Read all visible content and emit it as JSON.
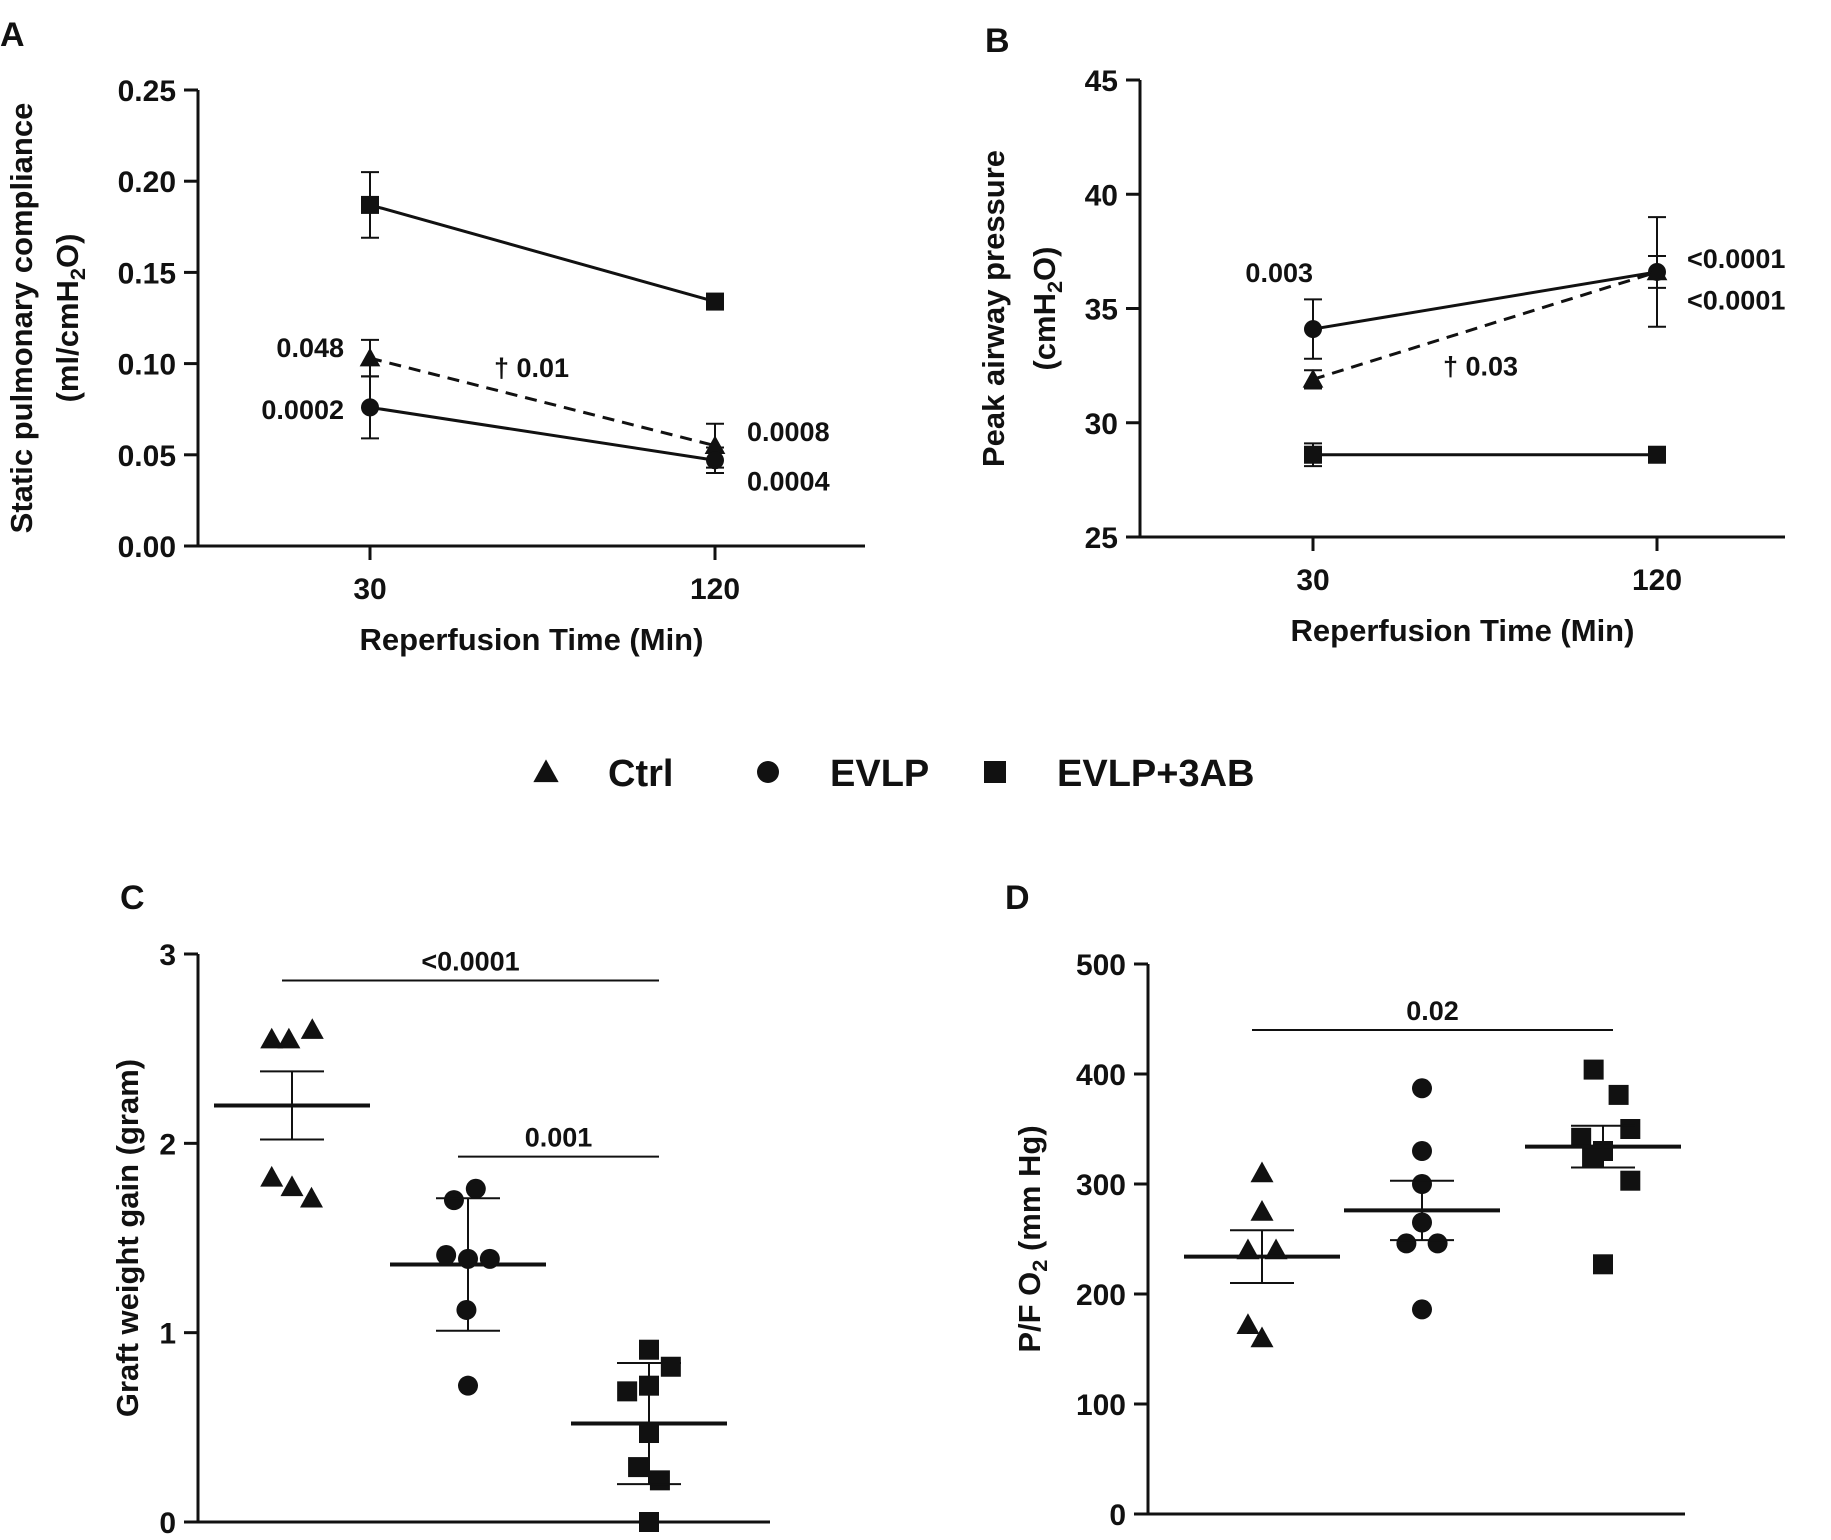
{
  "legend": [
    {
      "label": "Ctrl",
      "marker": "triangle"
    },
    {
      "label": "EVLP",
      "marker": "circle"
    },
    {
      "label": "EVLP+3AB",
      "marker": "square"
    }
  ],
  "chart_data": [
    {
      "panel": "A",
      "type": "line",
      "xlabel": "Reperfusion Time (Min)",
      "ylabel_main": "Static pulmonary compliance",
      "ylabel_unit": [
        "(ml/cmH",
        "2",
        "O)"
      ],
      "categories": [
        "30",
        "120"
      ],
      "ylim": [
        0,
        0.25
      ],
      "yticks": [
        "0.00",
        "0.05",
        "0.10",
        "0.15",
        "0.20",
        "0.25"
      ],
      "series": [
        {
          "name": "EVLP+3AB",
          "marker": "square",
          "dashed": false,
          "values": [
            0.187,
            0.134
          ],
          "sem": [
            0.018,
            0.002
          ]
        },
        {
          "name": "Ctrl",
          "marker": "triangle",
          "dashed": true,
          "values": [
            0.103,
            0.055
          ],
          "sem": [
            0.01,
            0.012
          ]
        },
        {
          "name": "EVLP",
          "marker": "circle",
          "dashed": false,
          "values": [
            0.076,
            0.047
          ],
          "sem": [
            0.017,
            0.007
          ]
        }
      ],
      "annotations": [
        {
          "text": "0.048",
          "x": "30",
          "y": 0.109,
          "anchor": "end",
          "dx": -26
        },
        {
          "text": "0.0002",
          "x": "30",
          "y": 0.075,
          "anchor": "end",
          "dx": -26
        },
        {
          "text": "† 0.01",
          "x": "30",
          "y": 0.098,
          "anchor": "start",
          "dx": 124
        },
        {
          "text": "0.0008",
          "x": "120",
          "y": 0.063,
          "anchor": "start",
          "dx": 32
        },
        {
          "text": "0.0004",
          "x": "120",
          "y": 0.036,
          "anchor": "start",
          "dx": 32
        }
      ]
    },
    {
      "panel": "B",
      "type": "line",
      "xlabel": "Reperfusion Time (Min)",
      "ylabel_main": "Peak airway pressure",
      "ylabel_unit": [
        "(cmH",
        "2",
        "O)"
      ],
      "categories": [
        "30",
        "120"
      ],
      "ylim": [
        25,
        45
      ],
      "yticks": [
        "25",
        "30",
        "35",
        "40",
        "45"
      ],
      "series": [
        {
          "name": "EVLP",
          "marker": "circle",
          "dashed": false,
          "values": [
            34.1,
            36.6
          ],
          "sem": [
            1.3,
            0.7
          ]
        },
        {
          "name": "Ctrl",
          "marker": "triangle",
          "dashed": true,
          "values": [
            31.9,
            36.6
          ],
          "sem": [
            0.4,
            2.4
          ]
        },
        {
          "name": "EVLP+3AB",
          "marker": "square",
          "dashed": false,
          "values": [
            28.6,
            28.6
          ],
          "sem": [
            0.5,
            0.1
          ]
        }
      ],
      "annotations": [
        {
          "text": "0.003",
          "x": "30",
          "y": 36.6,
          "anchor": "end",
          "dx": 0
        },
        {
          "text": "† 0.03",
          "x": "30",
          "y": 32.5,
          "anchor": "start",
          "dx": 130
        },
        {
          "text": "<0.0001",
          "x": "120",
          "y": 37.2,
          "anchor": "start",
          "dx": 30
        },
        {
          "text": "<0.0001",
          "x": "120",
          "y": 35.4,
          "anchor": "start",
          "dx": 30
        }
      ]
    },
    {
      "panel": "C",
      "type": "scatter",
      "ylabel": "Graft weight gain (gram)",
      "ylim": [
        0,
        3
      ],
      "yticks": [
        "0",
        "1",
        "2",
        "3"
      ],
      "groups": [
        {
          "name": "Ctrl",
          "marker": "triangle",
          "mean": 2.2,
          "err": [
            2.02,
            2.38
          ],
          "points": [
            [
              -0.26,
              2.55
            ],
            [
              -0.04,
              2.55
            ],
            [
              0.26,
              2.6
            ],
            [
              -0.26,
              1.82
            ],
            [
              0.0,
              1.77
            ],
            [
              0.25,
              1.71
            ]
          ]
        },
        {
          "name": "EVLP",
          "marker": "circle",
          "mean": 1.36,
          "err": [
            1.01,
            1.71
          ],
          "points": [
            [
              -0.18,
              1.7
            ],
            [
              0.1,
              1.76
            ],
            [
              -0.28,
              1.41
            ],
            [
              0.0,
              1.39
            ],
            [
              0.28,
              1.39
            ],
            [
              -0.02,
              1.12
            ],
            [
              0.0,
              0.72
            ]
          ]
        },
        {
          "name": "EVLP+3AB",
          "marker": "square",
          "mean": 0.52,
          "err": [
            0.2,
            0.84
          ],
          "points": [
            [
              0.0,
              0.91
            ],
            [
              0.28,
              0.82
            ],
            [
              -0.28,
              0.69
            ],
            [
              0.0,
              0.72
            ],
            [
              0.0,
              0.47
            ],
            [
              -0.14,
              0.29
            ],
            [
              0.14,
              0.22
            ],
            [
              0.0,
              0.0
            ]
          ]
        }
      ],
      "brackets": [
        {
          "text": "<0.0001",
          "from": 0,
          "to": 2,
          "y": 2.86
        },
        {
          "text": "0.001",
          "from": 1,
          "to": 2,
          "y": 1.93
        }
      ]
    },
    {
      "panel": "D",
      "type": "scatter",
      "ylabel_parts": [
        "P/F O",
        "2",
        " (mm Hg)"
      ],
      "ylim": [
        0,
        500
      ],
      "yticks": [
        "0",
        "100",
        "200",
        "300",
        "400",
        "500"
      ],
      "groups": [
        {
          "name": "Ctrl",
          "marker": "triangle",
          "mean": 234,
          "err": [
            210,
            258
          ],
          "points": [
            [
              0.0,
              310
            ],
            [
              0.0,
              275
            ],
            [
              -0.18,
              240
            ],
            [
              0.18,
              240
            ],
            [
              -0.18,
              172
            ],
            [
              0.0,
              160
            ]
          ]
        },
        {
          "name": "EVLP",
          "marker": "circle",
          "mean": 276,
          "err": [
            249,
            303
          ],
          "points": [
            [
              0.0,
              387
            ],
            [
              0.0,
              330
            ],
            [
              0.0,
              300
            ],
            [
              0.0,
              265
            ],
            [
              -0.2,
              246
            ],
            [
              0.2,
              246
            ],
            [
              0.0,
              186
            ]
          ]
        },
        {
          "name": "EVLP+3AB",
          "marker": "square",
          "mean": 334,
          "err": [
            315,
            353
          ],
          "points": [
            [
              -0.12,
              404
            ],
            [
              0.2,
              381
            ],
            [
              -0.28,
              342
            ],
            [
              0.35,
              350
            ],
            [
              0.0,
              330
            ],
            [
              -0.14,
              325
            ],
            [
              0.35,
              303
            ],
            [
              0.0,
              227
            ]
          ]
        }
      ],
      "brackets": [
        {
          "text": "0.02",
          "from": 0,
          "to": 2,
          "y": 440
        }
      ]
    }
  ]
}
